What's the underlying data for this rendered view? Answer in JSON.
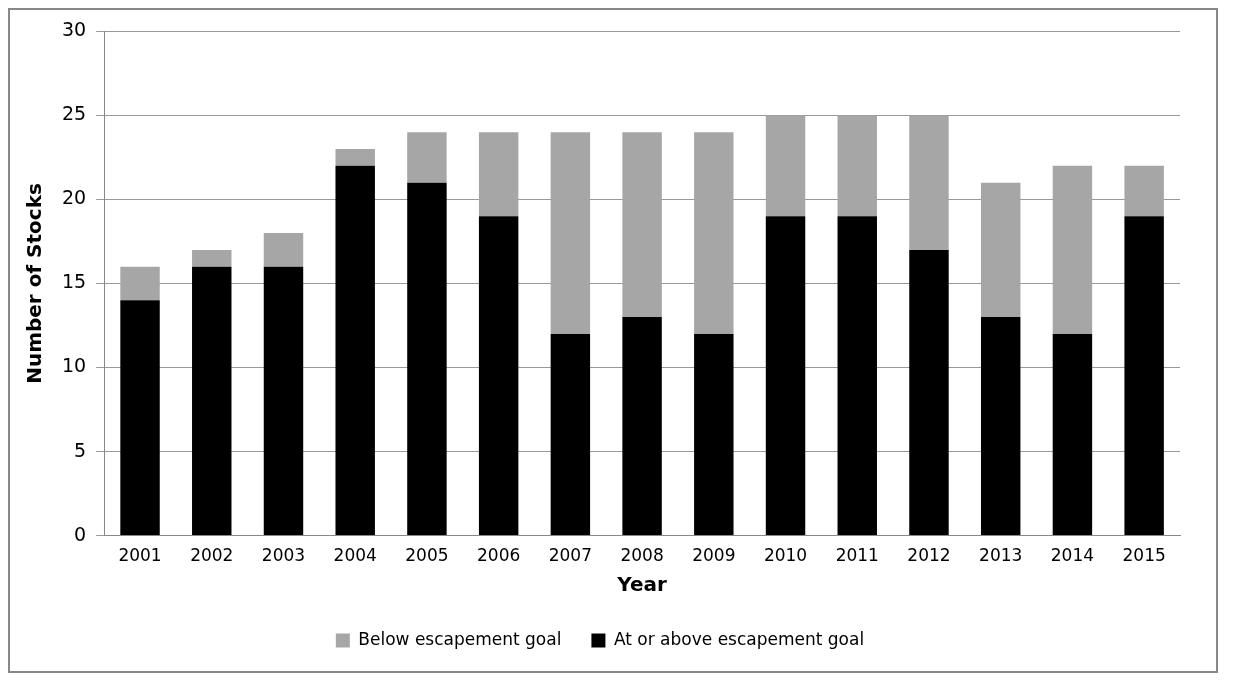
{
  "chart_data": {
    "type": "bar",
    "stacked": true,
    "xlabel": "Year",
    "ylabel": "Number of Stocks",
    "categories": [
      "2001",
      "2002",
      "2003",
      "2004",
      "2005",
      "2006",
      "2007",
      "2008",
      "2009",
      "2010",
      "2011",
      "2012",
      "2013",
      "2014",
      "2015"
    ],
    "series": [
      {
        "name": "At or above escapement goal",
        "color": "#000000",
        "values": [
          14,
          16,
          16,
          22,
          21,
          19,
          12,
          13,
          12,
          19,
          19,
          17,
          13,
          12,
          19
        ]
      },
      {
        "name": "Below escapement goal",
        "color": "#a6a6a6",
        "values": [
          2,
          1,
          2,
          1,
          3,
          5,
          12,
          11,
          12,
          6,
          6,
          8,
          8,
          10,
          3
        ]
      }
    ],
    "ylim": [
      0,
      30
    ],
    "yticks": [
      0,
      5,
      10,
      15,
      20,
      25,
      30
    ],
    "grid": "y",
    "legend": "bottom"
  }
}
